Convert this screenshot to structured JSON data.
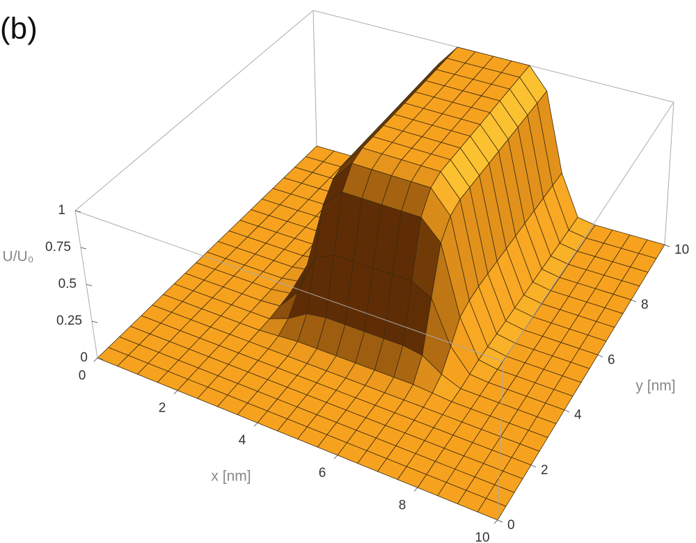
{
  "chart_data": {
    "type": "surface",
    "title": "(b)",
    "xlabel": "x [nm]",
    "ylabel": "y [nm]",
    "zlabel": "U/U₀",
    "color": "#f7a21f",
    "xlim": [
      0,
      10
    ],
    "ylim": [
      0,
      10
    ],
    "zlim": [
      0,
      1
    ],
    "xticks": [
      0,
      2,
      4,
      6,
      8,
      10
    ],
    "yticks": [
      0,
      2,
      4,
      6,
      8,
      10
    ],
    "zticks": [
      0,
      0.25,
      0.5,
      0.75,
      1
    ],
    "x": [
      0,
      0.5,
      1,
      1.5,
      2,
      2.5,
      3,
      3.5,
      4,
      4.5,
      5,
      5.5,
      6,
      6.5,
      7,
      7.5,
      8,
      8.5,
      9,
      9.5,
      10
    ],
    "y": [
      0,
      0.5,
      1,
      1.5,
      2,
      2.5,
      3,
      3.5,
      4,
      4.5,
      5,
      5.5,
      6,
      6.5,
      7,
      7.5,
      8,
      8.5,
      9,
      9.5,
      10
    ],
    "z": [
      [
        0,
        0,
        0,
        0,
        0,
        0,
        0,
        0,
        0,
        0,
        0,
        0,
        0,
        0,
        0,
        0,
        0,
        0,
        0,
        0,
        0
      ],
      [
        0,
        0,
        0,
        0,
        0,
        0,
        0,
        0,
        0,
        0,
        0,
        0,
        0,
        0,
        0,
        0,
        0,
        0,
        0,
        0,
        0
      ],
      [
        0,
        0,
        0,
        0,
        0,
        0,
        0,
        0,
        0,
        0,
        0,
        0,
        0,
        0,
        0,
        0,
        0,
        0,
        0,
        0,
        0
      ],
      [
        0,
        0,
        0,
        0,
        0,
        0,
        0,
        0,
        0,
        0,
        0,
        0,
        0,
        0,
        0,
        0,
        0,
        0,
        0,
        0,
        0
      ],
      [
        0,
        0,
        0,
        0,
        0,
        0,
        0,
        0,
        0,
        0,
        0,
        0,
        0,
        0,
        0,
        0,
        0,
        0,
        0,
        0,
        0
      ],
      [
        0,
        0,
        0,
        0,
        0,
        0,
        0,
        0,
        0,
        0,
        0,
        0,
        0,
        0,
        0,
        0,
        0,
        0,
        0,
        0,
        0
      ],
      [
        0,
        0,
        0,
        0,
        0,
        0,
        0.01,
        0.02,
        0.02,
        0.02,
        0.02,
        0.02,
        0.02,
        0.02,
        0.01,
        0,
        0,
        0,
        0,
        0,
        0
      ],
      [
        0,
        0,
        0,
        0,
        0,
        0,
        0.05,
        0.13,
        0.15,
        0.15,
        0.15,
        0.15,
        0.15,
        0.13,
        0.05,
        0,
        0,
        0,
        0,
        0,
        0
      ],
      [
        0,
        0,
        0,
        0,
        0,
        0.01,
        0.15,
        0.43,
        0.5,
        0.5,
        0.5,
        0.5,
        0.5,
        0.43,
        0.15,
        0.01,
        0,
        0,
        0,
        0,
        0
      ],
      [
        0,
        0,
        0,
        0,
        0,
        0.02,
        0.26,
        0.72,
        0.85,
        0.85,
        0.85,
        0.85,
        0.85,
        0.72,
        0.26,
        0.02,
        0,
        0,
        0,
        0,
        0
      ],
      [
        0,
        0,
        0,
        0,
        0,
        0.02,
        0.29,
        0.82,
        0.97,
        0.97,
        0.97,
        0.97,
        0.97,
        0.82,
        0.29,
        0.02,
        0,
        0,
        0,
        0,
        0
      ],
      [
        0,
        0,
        0,
        0,
        0,
        0.02,
        0.3,
        0.85,
        1,
        1,
        1,
        1,
        1,
        0.85,
        0.3,
        0.02,
        0,
        0,
        0,
        0,
        0
      ],
      [
        0,
        0,
        0,
        0,
        0,
        0.02,
        0.3,
        0.85,
        1,
        1,
        1,
        1,
        1,
        0.85,
        0.3,
        0.02,
        0,
        0,
        0,
        0,
        0
      ],
      [
        0,
        0,
        0,
        0,
        0,
        0.02,
        0.3,
        0.85,
        1,
        1,
        1,
        1,
        1,
        0.85,
        0.3,
        0.02,
        0,
        0,
        0,
        0,
        0
      ],
      [
        0,
        0,
        0,
        0,
        0,
        0.02,
        0.3,
        0.85,
        1,
        1,
        1,
        1,
        1,
        0.85,
        0.3,
        0.02,
        0,
        0,
        0,
        0,
        0
      ],
      [
        0,
        0,
        0,
        0,
        0,
        0.02,
        0.3,
        0.85,
        1,
        1,
        1,
        1,
        1,
        0.85,
        0.3,
        0.02,
        0,
        0,
        0,
        0,
        0
      ],
      [
        0,
        0,
        0,
        0,
        0,
        0.02,
        0.3,
        0.85,
        1,
        1,
        1,
        1,
        1,
        0.85,
        0.3,
        0.02,
        0,
        0,
        0,
        0,
        0
      ],
      [
        0,
        0,
        0,
        0,
        0,
        0.02,
        0.3,
        0.85,
        1,
        1,
        1,
        1,
        1,
        0.85,
        0.3,
        0.02,
        0,
        0,
        0,
        0,
        0
      ],
      [
        0,
        0,
        0,
        0,
        0,
        0.02,
        0.3,
        0.85,
        1,
        1,
        1,
        1,
        1,
        0.85,
        0.3,
        0.02,
        0,
        0,
        0,
        0,
        0
      ],
      [
        0,
        0,
        0,
        0,
        0,
        0.02,
        0.3,
        0.85,
        1,
        1,
        1,
        1,
        1,
        0.85,
        0.3,
        0.02,
        0,
        0,
        0,
        0,
        0
      ],
      [
        0,
        0,
        0,
        0,
        0,
        0.02,
        0.3,
        0.85,
        1,
        1,
        1,
        1,
        1,
        0.85,
        0.3,
        0.02,
        0,
        0,
        0,
        0,
        0
      ]
    ]
  }
}
